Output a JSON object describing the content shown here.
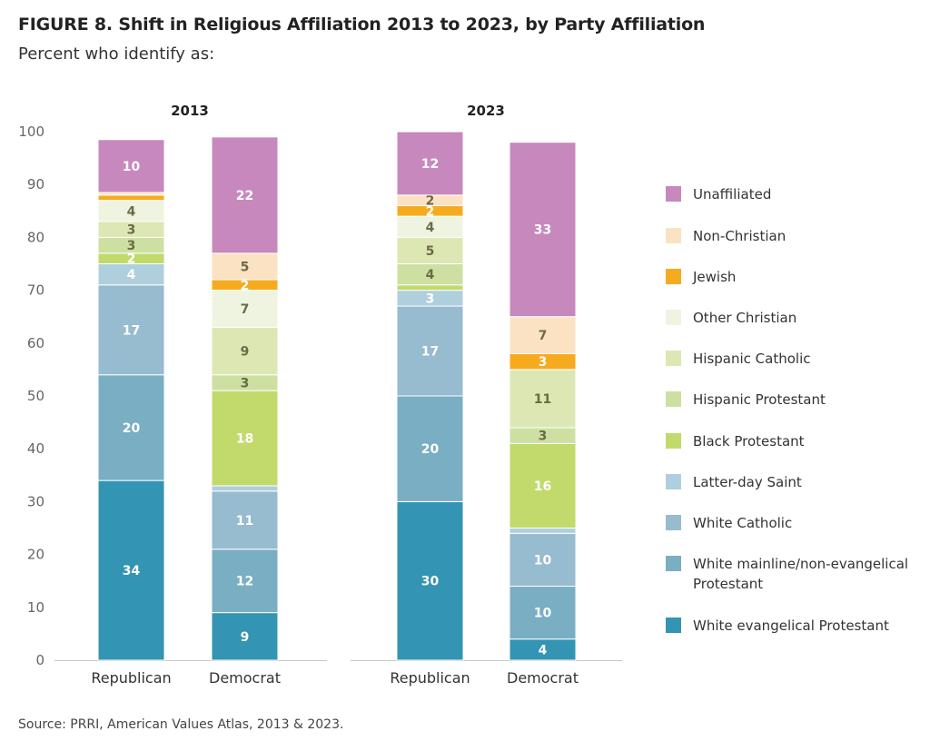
{
  "header": {
    "title": "FIGURE 8.  Shift in Religious Affiliation 2013 to 2023, by Party Affiliation",
    "subtitle": "Percent who identify as:"
  },
  "footer": {
    "source": "Source: PRRI, American Values Atlas, 2013 & 2023."
  },
  "legend_order": [
    "Unaffiliated",
    "Non-Christian",
    "Jewish",
    "Other Christian",
    "Hispanic Catholic",
    "Hispanic Protestant",
    "Black Protestant",
    "Latter-day Saint",
    "White Catholic",
    "White mainline/non-evangelical Protestant",
    "White evangelical Protestant"
  ],
  "chart_data": {
    "type": "bar",
    "stacked": true,
    "ylim": [
      0,
      100
    ],
    "yticks": [
      0,
      10,
      20,
      30,
      40,
      50,
      60,
      70,
      80,
      90,
      100
    ],
    "legend_position": "right",
    "panels": [
      {
        "title": "2013",
        "categories": [
          "Republican",
          "Democrat"
        ],
        "series": [
          {
            "name": "White evangelical Protestant",
            "color": "#3494b3",
            "values": [
              34,
              9
            ],
            "labels": [
              "34",
              "9"
            ]
          },
          {
            "name": "White mainline/non-evangelical Protestant",
            "color": "#79aec3",
            "values": [
              20,
              12
            ],
            "labels": [
              "20",
              "12"
            ]
          },
          {
            "name": "White Catholic",
            "color": "#97bbcf",
            "values": [
              17,
              11
            ],
            "labels": [
              "17",
              "11"
            ]
          },
          {
            "name": "Latter-day Saint",
            "color": "#b0cfdc",
            "values": [
              4,
              1
            ],
            "labels": [
              "4",
              ""
            ]
          },
          {
            "name": "Black Protestant",
            "color": "#c2d96c",
            "values": [
              2,
              18
            ],
            "labels": [
              "2",
              "18"
            ]
          },
          {
            "name": "Hispanic Protestant",
            "color": "#cde0a2",
            "values": [
              3,
              3
            ],
            "labels": [
              "3",
              "3"
            ]
          },
          {
            "name": "Hispanic Catholic",
            "color": "#dde7b4",
            "values": [
              3,
              9
            ],
            "labels": [
              "3",
              "9"
            ]
          },
          {
            "name": "Other Christian",
            "color": "#eff4e0",
            "values": [
              4,
              7
            ],
            "labels": [
              "4",
              "7"
            ]
          },
          {
            "name": "Jewish",
            "color": "#f6ab1f",
            "values": [
              1,
              2
            ],
            "labels": [
              "",
              "2"
            ]
          },
          {
            "name": "Non-Christian",
            "color": "#fbe2c2",
            "values": [
              0.5,
              5
            ],
            "labels": [
              "",
              "5"
            ]
          },
          {
            "name": "Unaffiliated",
            "color": "#c789bd",
            "values": [
              10,
              22
            ],
            "labels": [
              "10",
              "22"
            ]
          }
        ]
      },
      {
        "title": "2023",
        "categories": [
          "Republican",
          "Democrat"
        ],
        "series": [
          {
            "name": "White evangelical Protestant",
            "color": "#3494b3",
            "values": [
              30,
              4
            ],
            "labels": [
              "30",
              "4"
            ]
          },
          {
            "name": "White mainline/non-evangelical Protestant",
            "color": "#79aec3",
            "values": [
              20,
              10
            ],
            "labels": [
              "20",
              "10"
            ]
          },
          {
            "name": "White Catholic",
            "color": "#97bbcf",
            "values": [
              17,
              10
            ],
            "labels": [
              "17",
              "10"
            ]
          },
          {
            "name": "Latter-day Saint",
            "color": "#b0cfdc",
            "values": [
              3,
              1
            ],
            "labels": [
              "3",
              ""
            ]
          },
          {
            "name": "Black Protestant",
            "color": "#c2d96c",
            "values": [
              1,
              16
            ],
            "labels": [
              "",
              "16"
            ]
          },
          {
            "name": "Hispanic Protestant",
            "color": "#cde0a2",
            "values": [
              4,
              3
            ],
            "labels": [
              "4",
              "3"
            ]
          },
          {
            "name": "Hispanic Catholic",
            "color": "#dde7b4",
            "values": [
              5,
              11
            ],
            "labels": [
              "5",
              "11"
            ]
          },
          {
            "name": "Other Christian",
            "color": "#eff4e0",
            "values": [
              4,
              0
            ],
            "labels": [
              "4",
              ""
            ]
          },
          {
            "name": "Jewish",
            "color": "#f6ab1f",
            "values": [
              2,
              3
            ],
            "labels": [
              "2",
              "3"
            ]
          },
          {
            "name": "Non-Christian",
            "color": "#fbe2c2",
            "values": [
              2,
              7
            ],
            "labels": [
              "2",
              "7"
            ]
          },
          {
            "name": "Unaffiliated",
            "color": "#c789bd",
            "values": [
              12,
              33
            ],
            "labels": [
              "12",
              "33"
            ]
          }
        ]
      }
    ]
  }
}
